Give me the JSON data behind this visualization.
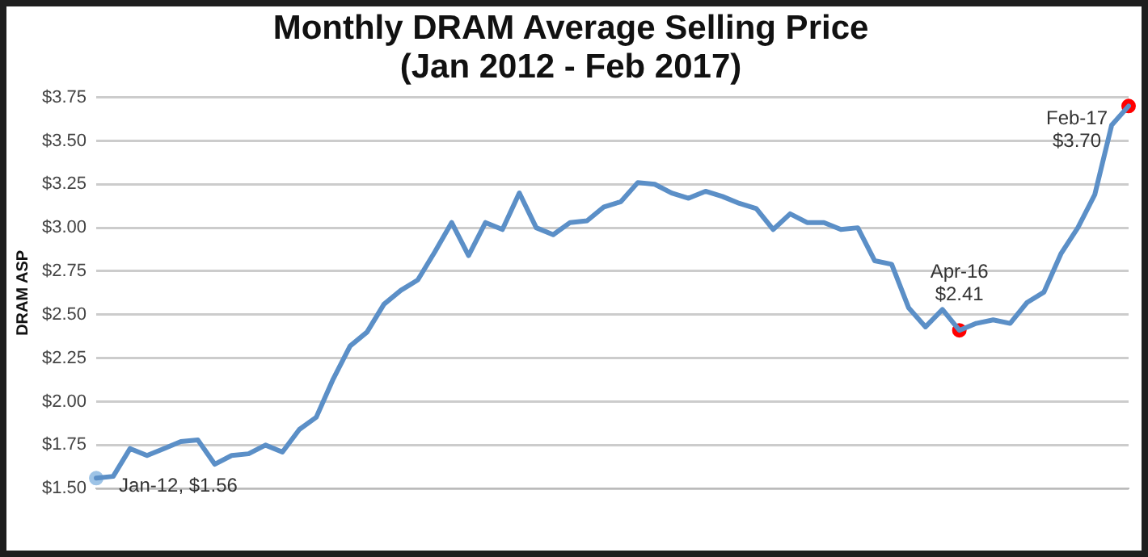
{
  "chart_data": {
    "type": "line",
    "title": "Monthly DRAM Average Selling Price\n(Jan 2012 - Feb 2017)",
    "ylabel": "DRAM ASP",
    "categories": [
      null,
      null,
      null,
      null,
      null,
      null,
      null,
      null,
      null,
      null,
      null,
      null,
      null,
      null,
      null,
      null,
      null,
      null,
      null,
      null,
      null,
      null,
      null,
      null,
      null,
      null,
      null,
      null,
      null,
      null,
      null,
      null,
      null,
      null,
      null,
      null,
      null,
      null,
      null,
      null,
      null,
      null,
      null,
      null,
      null,
      null,
      null,
      null,
      null,
      null,
      null,
      null,
      null,
      null,
      null,
      null,
      null,
      null,
      null,
      null,
      null,
      null
    ],
    "series": [
      {
        "color": "#5b8fc7",
        "values": [
          1.56,
          1.57,
          1.73,
          1.69,
          1.73,
          1.77,
          1.78,
          1.64,
          1.69,
          1.7,
          1.75,
          1.71,
          1.84,
          1.91,
          2.13,
          2.32,
          2.4,
          2.56,
          2.64,
          2.7,
          2.86,
          3.03,
          2.84,
          3.03,
          2.99,
          3.2,
          3.0,
          2.96,
          3.03,
          3.04,
          3.12,
          3.15,
          3.26,
          3.25,
          3.2,
          3.17,
          3.21,
          3.18,
          3.14,
          3.11,
          2.99,
          3.08,
          3.03,
          3.03,
          2.99,
          3.0,
          2.81,
          2.79,
          2.54,
          2.43,
          2.53,
          2.41,
          2.45,
          2.47,
          2.45,
          2.57,
          2.63,
          2.85,
          3.0,
          3.19,
          3.59,
          3.7
        ]
      },
      {
        "type": "scatter",
        "marker": "circle",
        "colors": [
          "#9dc3e6",
          null,
          null,
          null,
          null,
          null,
          null,
          null,
          null,
          null,
          null,
          null,
          null,
          null,
          null,
          null,
          null,
          null,
          null,
          null,
          null,
          null,
          null,
          null,
          null,
          null,
          null,
          null,
          null,
          null,
          null,
          null,
          null,
          null,
          null,
          null,
          null,
          null,
          null,
          null,
          null,
          null,
          null,
          null,
          null,
          null,
          null,
          null,
          null,
          null,
          null,
          "#ff0000",
          null,
          null,
          null,
          null,
          null,
          null,
          null,
          null,
          null,
          "#ff0000"
        ],
        "values": [
          1.56,
          null,
          null,
          null,
          null,
          null,
          null,
          null,
          null,
          null,
          null,
          null,
          null,
          null,
          null,
          null,
          null,
          null,
          null,
          null,
          null,
          null,
          null,
          null,
          null,
          null,
          null,
          null,
          null,
          null,
          null,
          null,
          null,
          null,
          null,
          null,
          null,
          null,
          null,
          null,
          null,
          null,
          null,
          null,
          null,
          null,
          null,
          null,
          null,
          null,
          null,
          2.41,
          null,
          null,
          null,
          null,
          null,
          null,
          null,
          null,
          null,
          3.7
        ]
      }
    ],
    "annotations": [
      "Jan-12, $1.56",
      "Apr-16\n$2.41",
      "Feb-17\n$3.70"
    ],
    "ylim": [
      1.5,
      3.75
    ],
    "yticks": [
      {
        "value": 1.5,
        "label": "$1.50"
      },
      {
        "value": 1.75,
        "label": "$1.75"
      },
      {
        "value": 2.0,
        "label": "$2.00"
      },
      {
        "value": 2.25,
        "label": "$2.25"
      },
      {
        "value": 2.5,
        "label": "$2.50"
      },
      {
        "value": 2.75,
        "label": "$2.75"
      },
      {
        "value": 3.0,
        "label": "$3.00"
      },
      {
        "value": 3.25,
        "label": "$3.25"
      },
      {
        "value": 3.5,
        "label": "$3.50"
      },
      {
        "value": 3.75,
        "label": "$3.75"
      }
    ],
    "grid": "y",
    "legend": false,
    "line_style": "solid",
    "marker": "none"
  }
}
